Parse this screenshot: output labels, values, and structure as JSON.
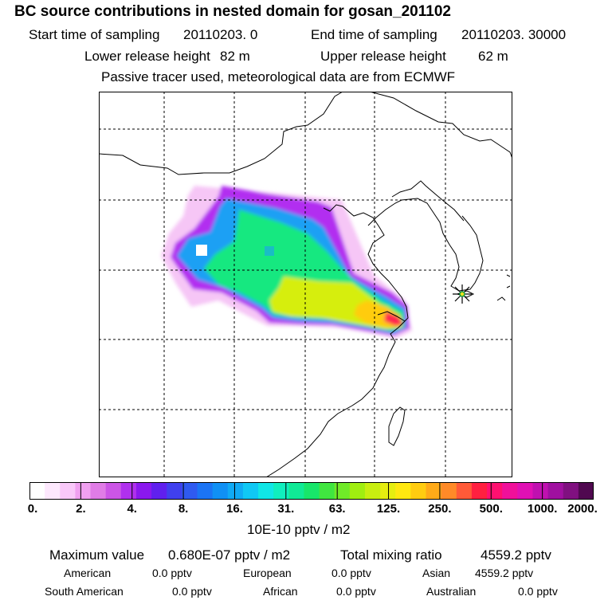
{
  "header": {
    "title": "BC  source contributions in nested domain for gosan_201102",
    "start_label": "Start time of sampling",
    "start_value": "20110203.     0",
    "end_label": "End time of sampling",
    "end_value": "20110203. 30000",
    "lower_label": "Lower release height",
    "lower_value": "82 m",
    "upper_label": "Upper release height",
    "upper_value": "62 m",
    "note": "Passive tracer used, meteorological data are from ECMWF"
  },
  "chart_data": {
    "type": "heatmap",
    "title": "BC  source contributions in nested domain for gosan_201102",
    "units": "10E-10 pptv / m2",
    "colorbar": {
      "ticks": [
        "0.",
        "2.",
        "4.",
        "8.",
        "16.",
        "31.",
        "63.",
        "125.",
        "250.",
        "500.",
        "1000.",
        "2000."
      ],
      "colors": [
        "#ffffff",
        "#fde8fd",
        "#f9c8f9",
        "#f0a0f0",
        "#e07ce6",
        "#cc55e6",
        "#b030ee",
        "#8a18ee",
        "#6020ee",
        "#4040ee",
        "#2f5af0",
        "#1b74f4",
        "#1090f4",
        "#10aaf4",
        "#10c8f4",
        "#10e6e6",
        "#10eebe",
        "#10ea96",
        "#18e66a",
        "#40e640",
        "#70ea28",
        "#a0ee10",
        "#c8ee10",
        "#e6ee10",
        "#ffe810",
        "#ffcc10",
        "#ffaa18",
        "#ff8a28",
        "#ff5a38",
        "#ff2040",
        "#ff1070",
        "#f0109a",
        "#e010b4",
        "#c010b0",
        "#a010a0",
        "#801080",
        "#500850"
      ]
    },
    "max_value": "0.680E-07",
    "total_mixing_ratio": "4559.2",
    "receptor": "gosan"
  },
  "summary": {
    "max_label": "Maximum value",
    "max_value": "0.680E-07 pptv / m2",
    "total_label": "Total mixing ratio",
    "total_value": "4559.2 pptv",
    "regions": [
      {
        "name": "American",
        "value": "0.0 pptv"
      },
      {
        "name": "European",
        "value": "0.0 pptv"
      },
      {
        "name": "Asian",
        "value": "4559.2 pptv"
      },
      {
        "name": "South American",
        "value": "0.0 pptv"
      },
      {
        "name": "African",
        "value": "0.0 pptv"
      },
      {
        "name": "Australian",
        "value": "0.0 pptv"
      }
    ]
  }
}
